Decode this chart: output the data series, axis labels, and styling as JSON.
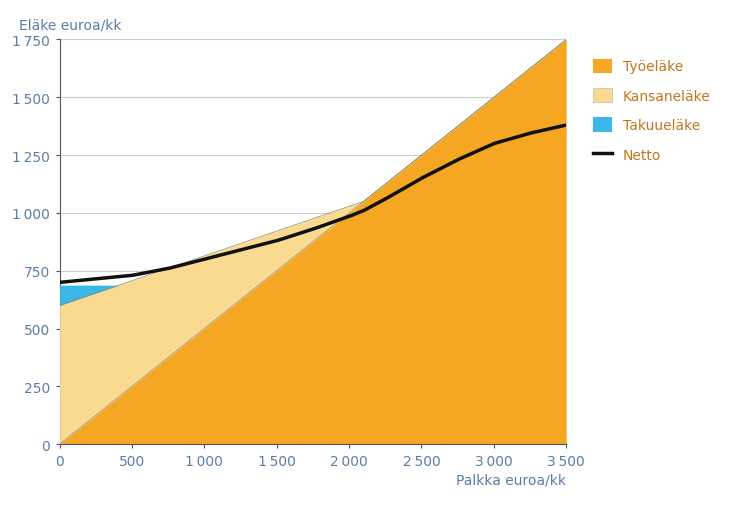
{
  "ylabel": "Eläke euroa/kk",
  "xlabel": "Palkka euroa/kk",
  "xlim": [
    0,
    3500
  ],
  "ylim": [
    0,
    1750
  ],
  "xticks": [
    0,
    500,
    1000,
    1500,
    2000,
    2500,
    3000,
    3500
  ],
  "yticks": [
    0,
    250,
    500,
    750,
    1000,
    1250,
    1500,
    1750
  ],
  "tyoelake_rate": 0.5,
  "kansanelake_max": 600.0,
  "kansanelake_zero_salary": 2100,
  "takuuelake_value": 688,
  "color_tyoelake": "#F5A623",
  "color_kansanelake": "#FAD990",
  "color_takuuelake": "#3BB8E8",
  "color_netto": "#111111",
  "color_axis_text": "#5B7EA6",
  "color_label_text": "#5B7EA6",
  "color_legend_text": "#C07820",
  "bg_color": "#FFFFFF",
  "grid_color": "#CCCCCC",
  "legend_labels": [
    "Työeläke",
    "Kansaneläke",
    "Takuueläke",
    "Netto"
  ],
  "netto_salary_pts": [
    0,
    100,
    200,
    300,
    400,
    500,
    750,
    1000,
    1250,
    1500,
    1750,
    2000,
    2100,
    2250,
    2500,
    2750,
    3000,
    3250,
    3500
  ],
  "netto_vals": [
    700,
    706,
    712,
    718,
    724,
    730,
    760,
    800,
    840,
    880,
    930,
    985,
    1010,
    1060,
    1150,
    1230,
    1300,
    1345,
    1380
  ]
}
